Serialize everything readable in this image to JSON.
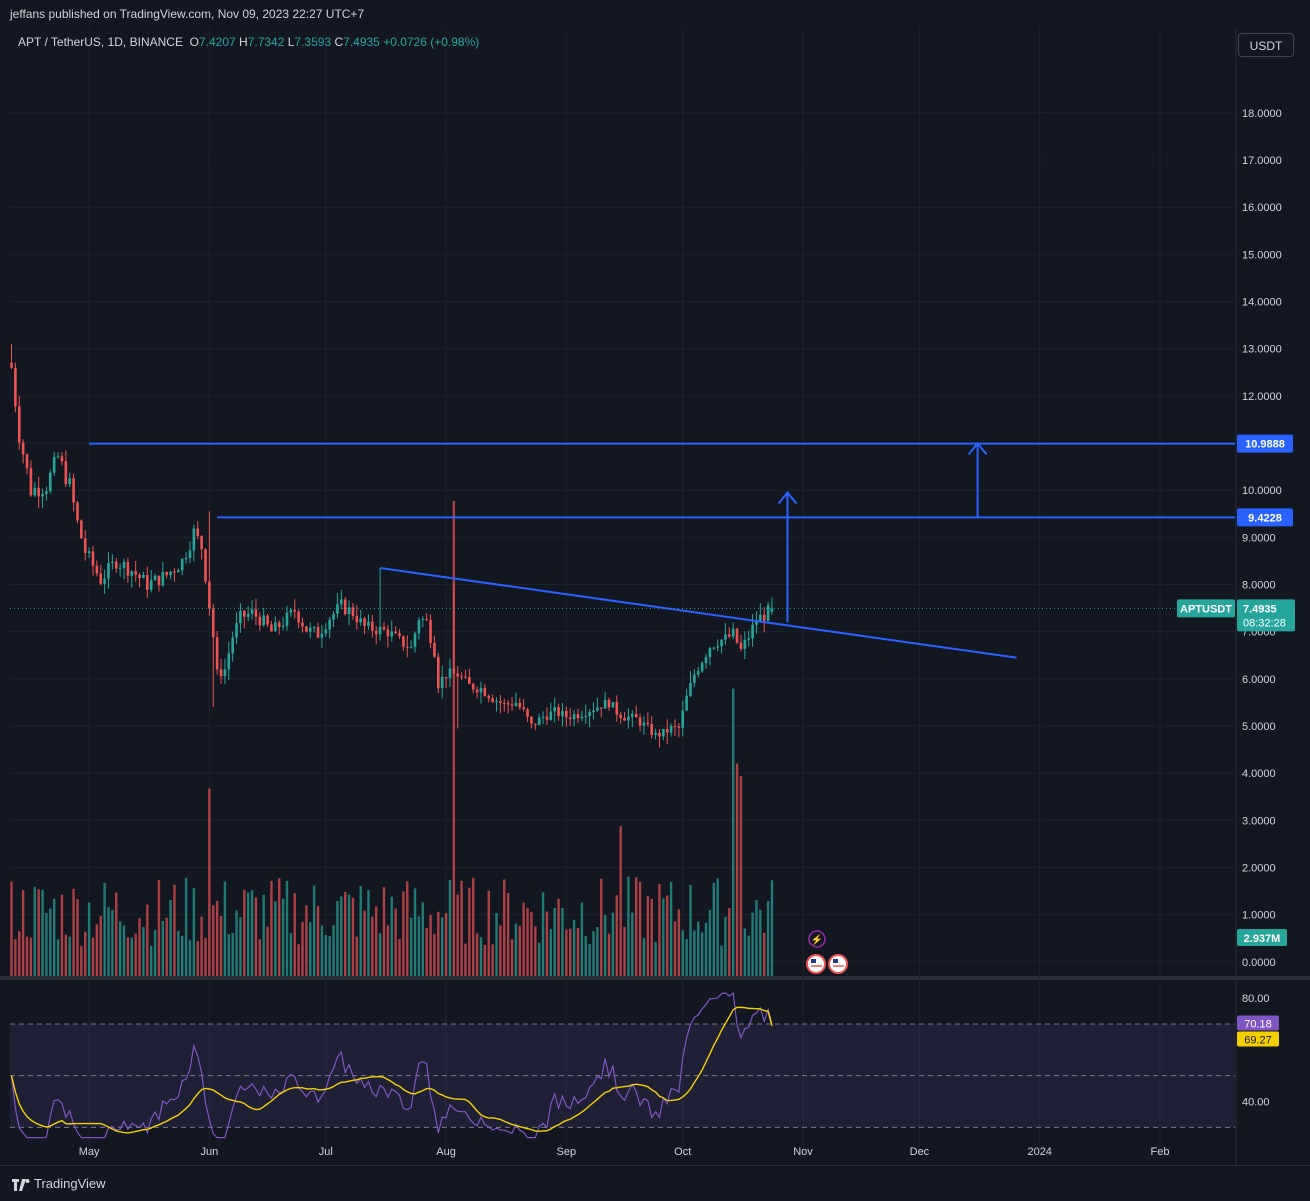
{
  "header": {
    "published": "jeffans published on TradingView.com, Nov 09, 2023 22:27 UTC+7"
  },
  "symbol": {
    "name": "APT / TetherUS, 1D, BINANCE",
    "o_label": "O",
    "o_value": "7.4207",
    "h_label": "H",
    "h_value": "7.7342",
    "l_label": "L",
    "l_value": "7.3593",
    "c_label": "C",
    "c_value": "7.4935",
    "change": "+0.0726 (+0.98%)"
  },
  "currency_button": "USDT",
  "footer": {
    "brand": "TradingView"
  },
  "colors": {
    "background": "#131722",
    "up": "#26a69a",
    "down": "#ef5350",
    "drawing": "#2962ff",
    "rsi": "#7e57c2",
    "rsi_ma": "#f5d000"
  },
  "chart_data": [
    {
      "type": "candlestick",
      "symbol_label": "APTUSDT",
      "current_price": "7.4935",
      "countdown": "08:32:28",
      "y_ticks": [
        "18.0000",
        "17.0000",
        "16.0000",
        "15.0000",
        "14.0000",
        "13.0000",
        "12.0000",
        "11.0000",
        "10.0000",
        "9.0000",
        "8.0000",
        "7.0000",
        "6.0000",
        "5.0000",
        "4.0000",
        "3.0000",
        "2.0000",
        "1.0000",
        "0.0000"
      ],
      "ylim": [
        -0.3,
        19.8
      ],
      "x_ticks": [
        "May",
        "Jun",
        "Jul",
        "Aug",
        "Sep",
        "Oct",
        "Nov",
        "Dec",
        "2024",
        "Feb"
      ],
      "x_tick_days": [
        20,
        51,
        81,
        112,
        143,
        173,
        204,
        234,
        265,
        296
      ],
      "start_date": "2023-04-11",
      "horizontal_levels": [
        {
          "label": "10.9888",
          "value": 10.9888,
          "from_day": 20
        },
        {
          "label": "9.4228",
          "value": 9.4228,
          "from_day": 53
        }
      ],
      "trendline": {
        "from": [
          95,
          8.35
        ],
        "to": [
          259,
          6.45
        ]
      },
      "arrows": [
        {
          "day": 200,
          "from": 7.2,
          "to": 9.95
        },
        {
          "day": 249,
          "from": 9.42,
          "to": 10.99
        }
      ],
      "anchors": [
        [
          0,
          12.6
        ],
        [
          2,
          11.2
        ],
        [
          5,
          10.0
        ],
        [
          9,
          10.1
        ],
        [
          12,
          10.7
        ],
        [
          15,
          10.1
        ],
        [
          17,
          9.3
        ],
        [
          19,
          8.7
        ],
        [
          23,
          8.1
        ],
        [
          27,
          8.5
        ],
        [
          31,
          8.3
        ],
        [
          35,
          8.0
        ],
        [
          40,
          8.2
        ],
        [
          44,
          8.5
        ],
        [
          47,
          9.1
        ],
        [
          49,
          8.8
        ],
        [
          50,
          8.2
        ],
        [
          52,
          6.9
        ],
        [
          53,
          6.1
        ],
        [
          55,
          6.2
        ],
        [
          57,
          6.9
        ],
        [
          59,
          7.3
        ],
        [
          62,
          7.4
        ],
        [
          65,
          7.2
        ],
        [
          67,
          7.0
        ],
        [
          70,
          7.2
        ],
        [
          73,
          7.45
        ],
        [
          76,
          7.05
        ],
        [
          79,
          6.95
        ],
        [
          82,
          7.3
        ],
        [
          85,
          7.55
        ],
        [
          88,
          7.4
        ],
        [
          91,
          7.1
        ],
        [
          94,
          7.05
        ],
        [
          97,
          7.0
        ],
        [
          100,
          6.8
        ],
        [
          103,
          6.65
        ],
        [
          105,
          7.3
        ],
        [
          107,
          7.2
        ],
        [
          109,
          6.6
        ],
        [
          110,
          5.9
        ],
        [
          112,
          6.1
        ],
        [
          115,
          6.1
        ],
        [
          118,
          5.85
        ],
        [
          121,
          5.8
        ],
        [
          124,
          5.6
        ],
        [
          127,
          5.45
        ],
        [
          130,
          5.5
        ],
        [
          132,
          5.3
        ],
        [
          134,
          5.0
        ],
        [
          137,
          5.2
        ],
        [
          140,
          5.3
        ],
        [
          143,
          5.2
        ],
        [
          146,
          5.25
        ],
        [
          149,
          5.35
        ],
        [
          152,
          5.45
        ],
        [
          154,
          5.5
        ],
        [
          156,
          5.3
        ],
        [
          158,
          5.2
        ],
        [
          161,
          5.15
        ],
        [
          164,
          4.95
        ],
        [
          166,
          4.8
        ],
        [
          168,
          4.85
        ],
        [
          170,
          4.95
        ],
        [
          172,
          4.95
        ],
        [
          174,
          5.6
        ],
        [
          176,
          6.1
        ],
        [
          178,
          6.4
        ],
        [
          180,
          6.7
        ],
        [
          182,
          6.8
        ],
        [
          184,
          6.85
        ],
        [
          186,
          6.95
        ],
        [
          188,
          6.6
        ],
        [
          190,
          6.9
        ],
        [
          192,
          7.25
        ],
        [
          194,
          7.35
        ],
        [
          196,
          7.49
        ]
      ],
      "volume": {
        "label": "2.937M",
        "spikes": [
          [
            51,
            0.75
          ],
          [
            114,
            1.9
          ],
          [
            157,
            0.6
          ],
          [
            186,
            1.15
          ],
          [
            187,
            0.85
          ],
          [
            188,
            0.8
          ]
        ]
      },
      "rsi": {
        "y_ticks": [
          "80.00",
          "40.00"
        ],
        "levels": [
          70,
          50,
          30
        ],
        "rsi_value": "70.18",
        "ma_value": "69.27",
        "ylim": [
          22,
          87
        ]
      }
    }
  ]
}
